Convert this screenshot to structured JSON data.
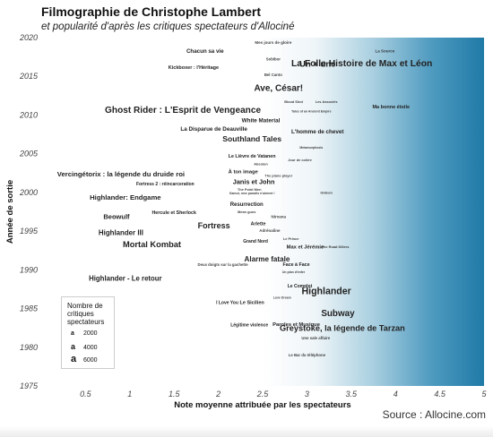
{
  "header": {
    "title": "Filmographie de Christophe Lambert",
    "subtitle": "et popularité d'après les critiques spectateurs d'Allociné"
  },
  "source": "Source : Allocine.com",
  "legend": {
    "title_lines": [
      "Nombre de",
      "critiques",
      "spectateurs"
    ],
    "items": [
      {
        "glyph": "a",
        "label": "2000"
      },
      {
        "glyph": "a",
        "label": "4000"
      },
      {
        "glyph": "a",
        "label": "6000"
      }
    ]
  },
  "chart_data": {
    "type": "scatter",
    "xlabel": "Note moyenne attribuée par les spectateurs",
    "ylabel": "Année de sortie",
    "xlim": [
      0,
      5
    ],
    "ylim": [
      1975,
      2020
    ],
    "xticks": [
      0.5,
      1,
      1.5,
      2,
      2.5,
      3,
      3.5,
      4,
      4.5,
      5
    ],
    "xtick_labels": [
      "0.5",
      "1",
      "1.5",
      "2",
      "2.5",
      "3",
      "3.5",
      "4",
      "4.5",
      "5"
    ],
    "yticks": [
      1975,
      1980,
      1985,
      1990,
      1995,
      2000,
      2005,
      2010,
      2015,
      2020
    ],
    "ytick_labels": [
      "1975",
      "1980",
      "1985",
      "1990",
      "1995",
      "2000",
      "2005",
      "2010",
      "2015",
      "2020"
    ],
    "background": {
      "style": "horizontal gradient",
      "from": "#ffffff",
      "to": "#1f7aa6"
    },
    "point_marker": "text label, size proportional to number of reviews",
    "points": [
      {
        "label": "Mes jours de gloire",
        "x": 2.62,
        "y": 2019.4,
        "reviews": 150
      },
      {
        "label": "La Source",
        "x": 3.88,
        "y": 2018.3,
        "reviews": 150
      },
      {
        "label": "Chacun sa vie",
        "x": 1.85,
        "y": 2018.3,
        "reviews": 800
      },
      {
        "label": "Sobibor",
        "x": 2.62,
        "y": 2017.2,
        "reviews": 100
      },
      {
        "label": "Un + une",
        "x": 3.12,
        "y": 2016.6,
        "reviews": 3600
      },
      {
        "label": "La Folle Histoire de Max et Léon",
        "x": 3.62,
        "y": 2016.7,
        "reviews": 4600
      },
      {
        "label": "Kickboxer : l'Héritage",
        "x": 1.72,
        "y": 2016.2,
        "reviews": 500
      },
      {
        "label": "Bel Canto",
        "x": 2.62,
        "y": 2015.2,
        "reviews": 100
      },
      {
        "label": "Ave, César!",
        "x": 2.68,
        "y": 2013.5,
        "reviews": 4200
      },
      {
        "label": "Blood Shot",
        "x": 2.85,
        "y": 2011.7,
        "reviews": 50
      },
      {
        "label": "Les Associés",
        "x": 3.22,
        "y": 2011.7,
        "reviews": 50
      },
      {
        "label": "Ma bonne étoile",
        "x": 3.95,
        "y": 2011.1,
        "reviews": 500
      },
      {
        "label": "Tales of an Ancient Empire",
        "x": 3.05,
        "y": 2010.5,
        "reviews": 10
      },
      {
        "label": "Ghost Rider : L'Esprit de Vengeance",
        "x": 1.6,
        "y": 2010.7,
        "reviews": 4300
      },
      {
        "label": "White Material",
        "x": 2.48,
        "y": 2009.3,
        "reviews": 900
      },
      {
        "label": "La Disparue de Deauville",
        "x": 1.95,
        "y": 2008.2,
        "reviews": 900
      },
      {
        "label": "L'homme de chevet",
        "x": 3.12,
        "y": 2007.9,
        "reviews": 900
      },
      {
        "label": "Southland Tales",
        "x": 2.38,
        "y": 2006.9,
        "reviews": 2600
      },
      {
        "label": "Metamorphosis",
        "x": 3.05,
        "y": 2005.8,
        "reviews": 10
      },
      {
        "label": "Le Lièvre de Vatanen",
        "x": 2.38,
        "y": 2004.7,
        "reviews": 400
      },
      {
        "label": "Jour de colère",
        "x": 2.92,
        "y": 2004.2,
        "reviews": 50
      },
      {
        "label": "Absolon",
        "x": 2.48,
        "y": 2003.7,
        "reviews": 50
      },
      {
        "label": "À ton image",
        "x": 2.28,
        "y": 2002.7,
        "reviews": 600
      },
      {
        "label": "The piano player",
        "x": 2.68,
        "y": 2002.2,
        "reviews": 50
      },
      {
        "label": "Vercingétorix : la légende du druide roi",
        "x": 0.9,
        "y": 2002.4,
        "reviews": 1800
      },
      {
        "label": "Janis et John",
        "x": 2.4,
        "y": 2001.4,
        "reviews": 1500
      },
      {
        "label": "Fortress 2 : réincarceration",
        "x": 1.4,
        "y": 2001.1,
        "reviews": 300
      },
      {
        "label": "The Point Men",
        "x": 2.35,
        "y": 2000.4,
        "reviews": 50
      },
      {
        "label": "Gideon",
        "x": 3.22,
        "y": 2000.0,
        "reviews": 50
      },
      {
        "label": "Gamut, mes paradis n'aiment !",
        "x": 2.38,
        "y": 1999.9,
        "reviews": 10
      },
      {
        "label": "Highlander: Endgame",
        "x": 0.95,
        "y": 1999.4,
        "reviews": 1800
      },
      {
        "label": "Resurrection",
        "x": 2.32,
        "y": 1998.5,
        "reviews": 700
      },
      {
        "label": "Beowulf",
        "x": 0.85,
        "y": 1996.9,
        "reviews": 1700
      },
      {
        "label": "Hercule et Sherlock",
        "x": 1.5,
        "y": 1997.4,
        "reviews": 400
      },
      {
        "label": "Mean guns",
        "x": 2.32,
        "y": 1997.5,
        "reviews": 50
      },
      {
        "label": "Nirvana",
        "x": 2.68,
        "y": 1996.9,
        "reviews": 150
      },
      {
        "label": "Fortress",
        "x": 1.95,
        "y": 1995.7,
        "reviews": 3000
      },
      {
        "label": "Arlette",
        "x": 2.45,
        "y": 1996.0,
        "reviews": 400
      },
      {
        "label": "Adrénaline",
        "x": 2.58,
        "y": 1995.1,
        "reviews": 150
      },
      {
        "label": "Highlander III",
        "x": 0.9,
        "y": 1994.8,
        "reviews": 2000
      },
      {
        "label": "Le Prince",
        "x": 2.82,
        "y": 1994.0,
        "reviews": 50
      },
      {
        "label": "Grand Nord",
        "x": 2.42,
        "y": 1993.7,
        "reviews": 300
      },
      {
        "label": "Mortal Kombat",
        "x": 1.25,
        "y": 1993.3,
        "reviews": 3400
      },
      {
        "label": "Max et Jérémie",
        "x": 2.98,
        "y": 1993.0,
        "reviews": 600
      },
      {
        "label": "The Road Killers",
        "x": 3.32,
        "y": 1993.0,
        "reviews": 50
      },
      {
        "label": "Alarme fatale",
        "x": 2.55,
        "y": 1991.4,
        "reviews": 2200
      },
      {
        "label": "Deux doigts sur la gachette",
        "x": 2.05,
        "y": 1990.7,
        "reviews": 100
      },
      {
        "label": "Face à Face",
        "x": 2.88,
        "y": 1990.7,
        "reviews": 400
      },
      {
        "label": "Un plan d'enfer",
        "x": 2.85,
        "y": 1989.7,
        "reviews": 10
      },
      {
        "label": "Highlander - Le retour",
        "x": 0.95,
        "y": 1988.9,
        "reviews": 1900
      },
      {
        "label": "Le Complot",
        "x": 2.92,
        "y": 1987.9,
        "reviews": 300
      },
      {
        "label": "Highlander",
        "x": 3.22,
        "y": 1987.3,
        "reviews": 5000
      },
      {
        "label": "Love Dream",
        "x": 2.72,
        "y": 1986.4,
        "reviews": 10
      },
      {
        "label": "Le Sicilien",
        "x": 2.38,
        "y": 1985.8,
        "reviews": 500
      },
      {
        "label": "I Love You",
        "x": 2.1,
        "y": 1985.8,
        "reviews": 300
      },
      {
        "label": "Subway",
        "x": 3.35,
        "y": 1984.4,
        "reviews": 4100
      },
      {
        "label": "Légitime violence",
        "x": 2.35,
        "y": 1982.9,
        "reviews": 300
      },
      {
        "label": "Paroles et Musique",
        "x": 2.88,
        "y": 1983.0,
        "reviews": 600
      },
      {
        "label": "Greystoke, la légende de Tarzan",
        "x": 3.4,
        "y": 1982.5,
        "reviews": 3300
      },
      {
        "label": "Une sale affaire",
        "x": 3.1,
        "y": 1981.2,
        "reviews": 100
      },
      {
        "label": "Le Bar du téléphone",
        "x": 3.0,
        "y": 1979.0,
        "reviews": 100
      }
    ]
  }
}
